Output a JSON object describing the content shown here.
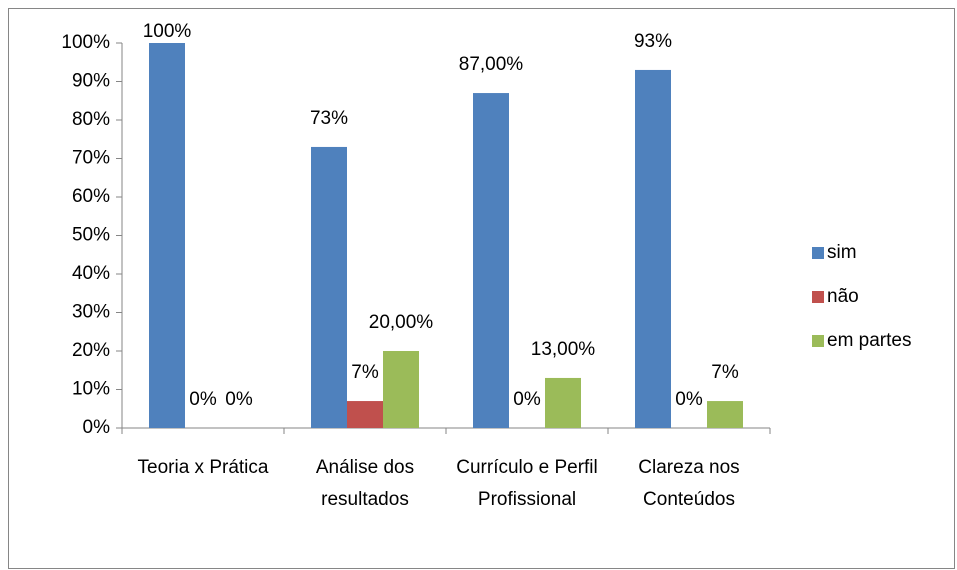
{
  "chart_data": {
    "type": "bar",
    "categories": [
      "Teoria x Prática",
      "Análise dos resultados",
      "Currículo e Perfil Profissional",
      "Clareza nos Conteúdos"
    ],
    "series": [
      {
        "name": "sim",
        "color": "#4f81bd",
        "values": [
          100,
          73,
          87,
          93
        ],
        "value_labels": [
          "100%",
          "73%",
          "87,00%",
          "93%"
        ]
      },
      {
        "name": "não",
        "color": "#c0504d",
        "values": [
          0,
          7,
          0,
          0
        ],
        "value_labels": [
          "0%",
          "7%",
          "0%",
          "0%"
        ]
      },
      {
        "name": "em partes",
        "color": "#9bbb59",
        "values": [
          0,
          20,
          13,
          7
        ],
        "value_labels": [
          "0%",
          "20,00%",
          "13,00%",
          "7%"
        ]
      }
    ],
    "ylim": [
      0,
      100
    ],
    "yticks": [
      {
        "value": 0,
        "label": "0%"
      },
      {
        "value": 10,
        "label": "10%"
      },
      {
        "value": 20,
        "label": "20%"
      },
      {
        "value": 30,
        "label": "30%"
      },
      {
        "value": 40,
        "label": "40%"
      },
      {
        "value": 50,
        "label": "50%"
      },
      {
        "value": 60,
        "label": "60%"
      },
      {
        "value": 70,
        "label": "70%"
      },
      {
        "value": 80,
        "label": "80%"
      },
      {
        "value": 90,
        "label": "90%"
      },
      {
        "value": 100,
        "label": "100%"
      }
    ],
    "grid": false,
    "legend": "right"
  }
}
